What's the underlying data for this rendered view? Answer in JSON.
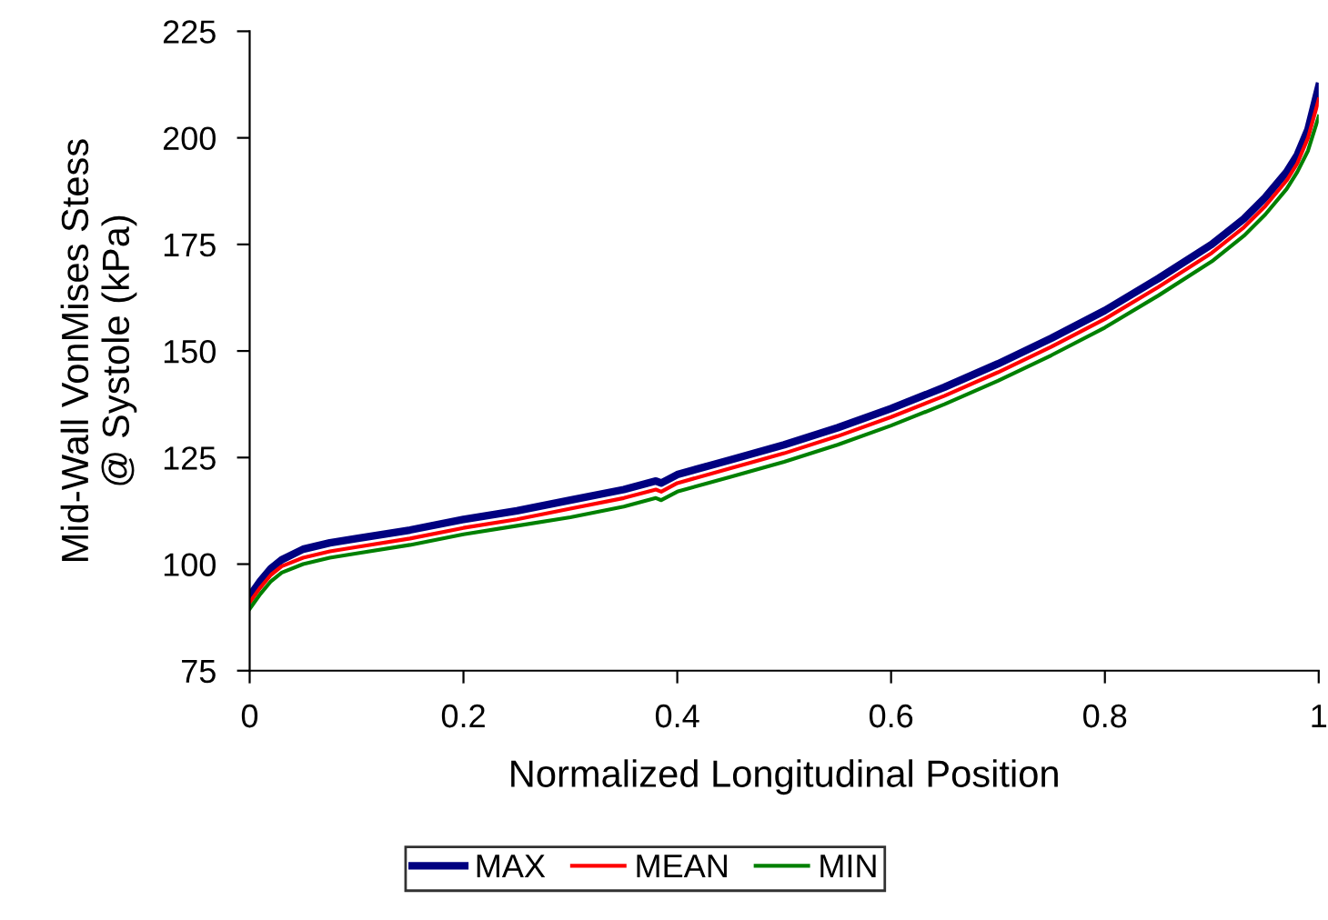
{
  "chart_data": {
    "type": "line",
    "xlabel": "Normalized Longitudinal Position",
    "ylabel": "Mid-Wall VonMises Stess\n@ Systole (kPa)",
    "x": [
      0,
      0.01,
      0.02,
      0.03,
      0.05,
      0.075,
      0.1,
      0.15,
      0.2,
      0.25,
      0.3,
      0.35,
      0.38,
      0.385,
      0.4,
      0.45,
      0.5,
      0.55,
      0.6,
      0.65,
      0.7,
      0.75,
      0.8,
      0.85,
      0.9,
      0.93,
      0.95,
      0.97,
      0.98,
      0.99,
      1.0
    ],
    "series": [
      {
        "name": "MAX",
        "color": "#000080",
        "values": [
          92.5,
          96,
          99,
          101,
          103.5,
          105,
          106,
          108,
          110.5,
          112.5,
          115,
          117.5,
          119.5,
          119,
          121,
          124.5,
          128,
          132,
          136.5,
          141.5,
          147,
          153,
          159.5,
          167,
          175,
          181,
          186,
          192,
          196,
          202,
          212
        ]
      },
      {
        "name": "MEAN",
        "color": "#ff0000",
        "values": [
          91,
          94.5,
          97.5,
          99.5,
          101.5,
          103,
          104,
          106,
          108.5,
          110.5,
          113,
          115.5,
          117.5,
          117,
          119,
          122.5,
          126,
          130,
          134.5,
          139.5,
          145,
          151,
          157.5,
          165,
          173,
          179,
          184,
          190,
          194,
          200,
          209
        ]
      },
      {
        "name": "MIN",
        "color": "#008000",
        "values": [
          89.5,
          93,
          96,
          98,
          100,
          101.5,
          102.5,
          104.5,
          107,
          109,
          111,
          113.5,
          115.5,
          115,
          117,
          120.5,
          124,
          128,
          132.5,
          137.5,
          143,
          149,
          155.5,
          163,
          171,
          177,
          182,
          188,
          192,
          197,
          205
        ]
      }
    ],
    "xlim": [
      0,
      1
    ],
    "xticks": [
      0,
      0.2,
      0.4,
      0.6,
      0.8,
      1
    ],
    "ylim": [
      75,
      225
    ],
    "yticks": [
      75,
      100,
      125,
      150,
      175,
      200,
      225
    ],
    "grid": false,
    "legend": "bottom",
    "marker": "none",
    "line_style": "solid"
  }
}
